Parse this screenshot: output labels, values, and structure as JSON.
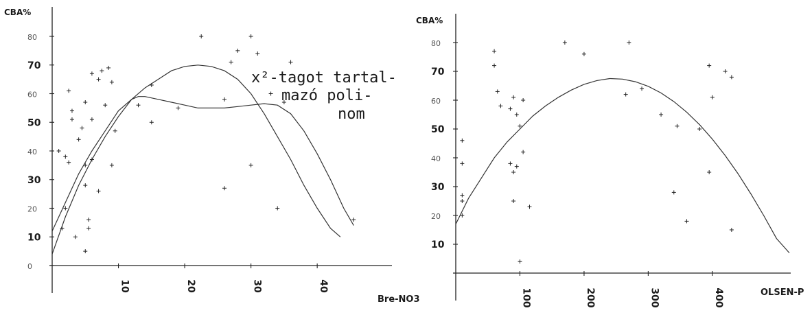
{
  "chart_data": [
    {
      "type": "scatter",
      "ylabel": "CBA%",
      "xlabel": "Bre-NO3",
      "xlim": [
        0,
        52
      ],
      "ylim": [
        0,
        85
      ],
      "y_ticks": [
        0,
        10,
        20,
        30,
        40,
        50,
        60,
        70,
        80
      ],
      "y_tick_labels": [
        "0",
        "10",
        "20",
        "30",
        "40",
        "50",
        "60",
        "70",
        "80"
      ],
      "x_ticks": [
        10,
        20,
        30,
        40
      ],
      "x_tick_labels": [
        "10",
        "20",
        "30",
        "40"
      ],
      "annotation": [
        "x²-tagot tartal-",
        "mazó poli-",
        "nom"
      ],
      "grid": false,
      "points": [
        [
          1,
          40
        ],
        [
          2,
          38
        ],
        [
          2.5,
          36
        ],
        [
          2.5,
          61
        ],
        [
          3,
          54
        ],
        [
          3,
          51
        ],
        [
          4,
          44
        ],
        [
          4.5,
          48
        ],
        [
          5,
          57
        ],
        [
          6,
          67
        ],
        [
          6,
          51
        ],
        [
          7,
          65
        ],
        [
          7.5,
          68
        ],
        [
          8.5,
          69
        ],
        [
          8,
          56
        ],
        [
          9,
          64
        ],
        [
          9,
          35
        ],
        [
          9.5,
          47
        ],
        [
          5,
          35
        ],
        [
          5,
          28
        ],
        [
          6,
          37
        ],
        [
          7,
          26
        ],
        [
          5.5,
          16
        ],
        [
          5.5,
          13
        ],
        [
          3.5,
          10
        ],
        [
          5,
          5
        ],
        [
          1.5,
          13
        ],
        [
          2,
          20
        ],
        [
          13,
          56
        ],
        [
          15,
          63
        ],
        [
          15,
          50
        ],
        [
          19,
          55
        ],
        [
          22.5,
          80
        ],
        [
          26,
          58
        ],
        [
          26,
          27
        ],
        [
          28,
          75
        ],
        [
          27,
          71
        ],
        [
          30,
          80
        ],
        [
          30,
          35
        ],
        [
          31,
          74
        ],
        [
          33,
          60
        ],
        [
          35,
          57
        ],
        [
          34,
          20
        ],
        [
          36,
          71
        ],
        [
          45.5,
          16
        ]
      ],
      "series": [
        {
          "kind": "quadratic fit",
          "x": [
            0,
            2,
            4,
            6,
            8,
            10,
            12,
            14,
            16,
            18,
            20,
            22,
            24,
            26,
            28,
            30,
            32,
            34,
            36,
            38,
            40,
            42,
            43.5
          ],
          "y": [
            4,
            17,
            28,
            37,
            45,
            52,
            58,
            62,
            65,
            68,
            69.5,
            70,
            69.5,
            68,
            65,
            60,
            53,
            45,
            37,
            28,
            20,
            13,
            10
          ]
        },
        {
          "kind": "higher-order polynomial fit",
          "x": [
            0,
            2,
            4,
            6,
            8,
            10,
            12,
            13,
            14,
            16,
            18,
            20,
            22,
            24,
            26,
            28,
            30,
            32,
            34,
            36,
            38,
            40,
            42,
            44,
            45.5
          ],
          "y": [
            12,
            22,
            32,
            40,
            47,
            54,
            58,
            59,
            59,
            58,
            57,
            56,
            55,
            55,
            55,
            55.5,
            56,
            56.5,
            56,
            53,
            47,
            39,
            30,
            20,
            14
          ]
        }
      ]
    },
    {
      "type": "scatter",
      "ylabel": "CBA%",
      "xlabel": "OLSEN-P",
      "xlim": [
        0,
        520
      ],
      "ylim": [
        0,
        85
      ],
      "y_ticks": [
        10,
        20,
        30,
        40,
        50,
        60,
        70,
        80
      ],
      "y_tick_labels": [
        "10",
        "20",
        "30",
        "40",
        "50",
        "60",
        "70",
        "80"
      ],
      "x_ticks": [
        100,
        200,
        300,
        400
      ],
      "x_tick_labels": [
        "100",
        "200",
        "300",
        "400"
      ],
      "grid": false,
      "points": [
        [
          10,
          38
        ],
        [
          10,
          27
        ],
        [
          10,
          25
        ],
        [
          10,
          46
        ],
        [
          10,
          20
        ],
        [
          60,
          77
        ],
        [
          60,
          72
        ],
        [
          65,
          63
        ],
        [
          70,
          58
        ],
        [
          85,
          57
        ],
        [
          90,
          61
        ],
        [
          95,
          55
        ],
        [
          105,
          60
        ],
        [
          100,
          51
        ],
        [
          105,
          42
        ],
        [
          85,
          38
        ],
        [
          90,
          35
        ],
        [
          95,
          37
        ],
        [
          90,
          25
        ],
        [
          115,
          23
        ],
        [
          100,
          4
        ],
        [
          170,
          80
        ],
        [
          200,
          76
        ],
        [
          270,
          80
        ],
        [
          265,
          62
        ],
        [
          290,
          64
        ],
        [
          320,
          55
        ],
        [
          345,
          51
        ],
        [
          340,
          28
        ],
        [
          380,
          50
        ],
        [
          360,
          18
        ],
        [
          395,
          35
        ],
        [
          395,
          72
        ],
        [
          400,
          61
        ],
        [
          420,
          70
        ],
        [
          430,
          68
        ],
        [
          430,
          15
        ]
      ],
      "series": [
        {
          "kind": "quadratic fit",
          "x": [
            0,
            20,
            40,
            60,
            80,
            100,
            120,
            140,
            160,
            180,
            200,
            220,
            240,
            260,
            280,
            300,
            320,
            340,
            360,
            380,
            400,
            420,
            440,
            460,
            480,
            500,
            520
          ],
          "y": [
            17,
            26,
            33,
            40,
            45.5,
            50,
            54.5,
            58,
            61,
            63.5,
            65.5,
            66.8,
            67.5,
            67.3,
            66.4,
            64.8,
            62.5,
            59.5,
            55.8,
            51.5,
            46.5,
            40.8,
            34.5,
            27.5,
            20,
            12,
            7
          ]
        }
      ]
    }
  ]
}
